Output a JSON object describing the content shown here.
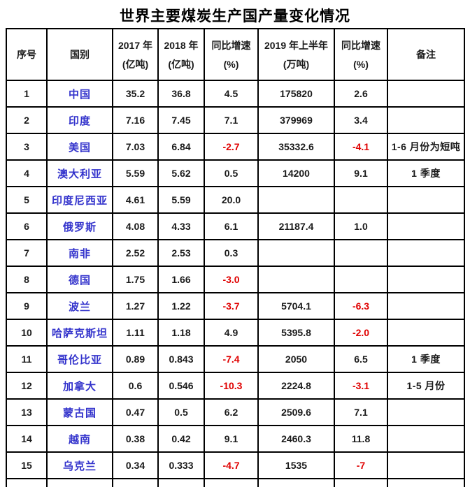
{
  "title": "世界主要煤炭生产国产量变化情况",
  "colors": {
    "country_text": "#3333cc",
    "negative_value": "#e00000",
    "normal_text": "#1a1a1a",
    "border": "#000000"
  },
  "table": {
    "headers": [
      {
        "line1": "序号",
        "line2": ""
      },
      {
        "line1": "国别",
        "line2": ""
      },
      {
        "line1": "2017 年",
        "line2": "(亿吨)"
      },
      {
        "line1": "2018 年",
        "line2": "(亿吨)"
      },
      {
        "line1": "同比增速",
        "line2": "(%)"
      },
      {
        "line1": "2019 年上半年",
        "line2": "(万吨)"
      },
      {
        "line1": "同比增速",
        "line2": "(%)"
      },
      {
        "line1": "备注",
        "line2": ""
      }
    ],
    "field_order": [
      "no",
      "country",
      "v2017",
      "v2018",
      "g1",
      "h2019",
      "g2",
      "note"
    ],
    "rows": [
      {
        "no": "1",
        "country": "中国",
        "v2017": "35.2",
        "v2018": "36.8",
        "g1": "4.5",
        "h2019": "175820",
        "g2": "2.6",
        "note": ""
      },
      {
        "no": "2",
        "country": "印度",
        "v2017": "7.16",
        "v2018": "7.45",
        "g1": "7.1",
        "h2019": "379969",
        "g2": "3.4",
        "note": ""
      },
      {
        "no": "3",
        "country": "美国",
        "v2017": "7.03",
        "v2018": "6.84",
        "g1": "-2.7",
        "h2019": "35332.6",
        "g2": "-4.1",
        "note": "1-6 月份为短吨"
      },
      {
        "no": "4",
        "country": "澳大利亚",
        "v2017": "5.59",
        "v2018": "5.62",
        "g1": "0.5",
        "h2019": "14200",
        "g2": "9.1",
        "note": "1 季度"
      },
      {
        "no": "5",
        "country": "印度尼西亚",
        "v2017": "4.61",
        "v2018": "5.59",
        "g1": "20.0",
        "h2019": "",
        "g2": "",
        "note": ""
      },
      {
        "no": "6",
        "country": "俄罗斯",
        "v2017": "4.08",
        "v2018": "4.33",
        "g1": "6.1",
        "h2019": "21187.4",
        "g2": "1.0",
        "note": ""
      },
      {
        "no": "7",
        "country": "南非",
        "v2017": "2.52",
        "v2018": "2.53",
        "g1": "0.3",
        "h2019": "",
        "g2": "",
        "note": ""
      },
      {
        "no": "8",
        "country": "德国",
        "v2017": "1.75",
        "v2018": "1.66",
        "g1": "-3.0",
        "h2019": "",
        "g2": "",
        "note": ""
      },
      {
        "no": "9",
        "country": "波兰",
        "v2017": "1.27",
        "v2018": "1.22",
        "g1": "-3.7",
        "h2019": "5704.1",
        "g2": "-6.3",
        "note": ""
      },
      {
        "no": "10",
        "country": "哈萨克斯坦",
        "v2017": "1.11",
        "v2018": "1.18",
        "g1": "4.9",
        "h2019": "5395.8",
        "g2": "-2.0",
        "note": ""
      },
      {
        "no": "11",
        "country": "哥伦比亚",
        "v2017": "0.89",
        "v2018": "0.843",
        "g1": "-7.4",
        "h2019": "2050",
        "g2": "6.5",
        "note": "1 季度"
      },
      {
        "no": "12",
        "country": "加拿大",
        "v2017": "0.6",
        "v2018": "0.546",
        "g1": "-10.3",
        "h2019": "2224.8",
        "g2": "-3.1",
        "note": "1-5 月份"
      },
      {
        "no": "13",
        "country": "蒙古国",
        "v2017": "0.47",
        "v2018": "0.5",
        "g1": "6.2",
        "h2019": "2509.6",
        "g2": "7.1",
        "note": ""
      },
      {
        "no": "14",
        "country": "越南",
        "v2017": "0.38",
        "v2018": "0.42",
        "g1": "9.1",
        "h2019": "2460.3",
        "g2": "11.8",
        "note": ""
      },
      {
        "no": "15",
        "country": "乌克兰",
        "v2017": "0.34",
        "v2018": "0.333",
        "g1": "-4.7",
        "h2019": "1535",
        "g2": "-7",
        "note": ""
      }
    ]
  }
}
